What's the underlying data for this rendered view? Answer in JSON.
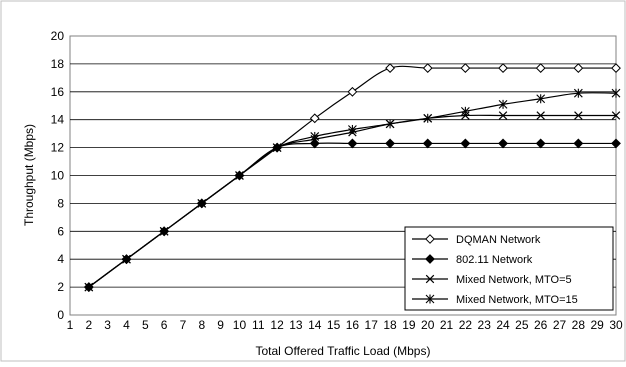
{
  "chart_data": {
    "type": "line",
    "title": "",
    "xlabel": "Total Offered Traffic Load (Mbps)",
    "ylabel": "Throughput (Mbps)",
    "xlim": [
      1,
      30
    ],
    "ylim": [
      0,
      20
    ],
    "x_ticks": [
      1,
      2,
      3,
      4,
      5,
      6,
      7,
      8,
      9,
      10,
      11,
      12,
      13,
      14,
      15,
      16,
      17,
      18,
      19,
      20,
      21,
      22,
      23,
      24,
      25,
      26,
      27,
      28,
      29,
      30
    ],
    "y_ticks": [
      0,
      2,
      4,
      6,
      8,
      10,
      12,
      14,
      16,
      18,
      20
    ],
    "grid": "horizontal",
    "legend_position": "bottom-right",
    "series": [
      {
        "name": "DQMAN Network",
        "marker": "diamond-open",
        "x": [
          2,
          4,
          6,
          8,
          10,
          12,
          14,
          16,
          18,
          20,
          22,
          24,
          26,
          28,
          30
        ],
        "y": [
          2,
          4,
          6,
          8,
          10,
          12,
          14.1,
          16,
          17.7,
          17.7,
          17.7,
          17.7,
          17.7,
          17.7,
          17.7
        ]
      },
      {
        "name": "802.11 Network",
        "marker": "diamond-filled",
        "x": [
          2,
          4,
          6,
          8,
          10,
          12,
          14,
          16,
          18,
          20,
          22,
          24,
          26,
          28,
          30
        ],
        "y": [
          2,
          4,
          6,
          8,
          10,
          12,
          12.3,
          12.3,
          12.3,
          12.3,
          12.3,
          12.3,
          12.3,
          12.3,
          12.3
        ]
      },
      {
        "name": "Mixed Network, MTO=5",
        "marker": "x",
        "x": [
          2,
          4,
          6,
          8,
          10,
          12,
          14,
          16,
          18,
          20,
          22,
          24,
          26,
          28,
          30
        ],
        "y": [
          2,
          4,
          6,
          8,
          10,
          12,
          12.6,
          13.1,
          13.7,
          14.1,
          14.3,
          14.3,
          14.3,
          14.3,
          14.3
        ]
      },
      {
        "name": "Mixed Network, MTO=15",
        "marker": "asterisk",
        "x": [
          2,
          4,
          6,
          8,
          10,
          12,
          14,
          16,
          18,
          20,
          22,
          24,
          26,
          28,
          30
        ],
        "y": [
          2,
          4,
          6,
          8,
          10,
          12,
          12.8,
          13.3,
          13.7,
          14.1,
          14.6,
          15.1,
          15.5,
          15.9,
          15.9
        ]
      }
    ]
  }
}
